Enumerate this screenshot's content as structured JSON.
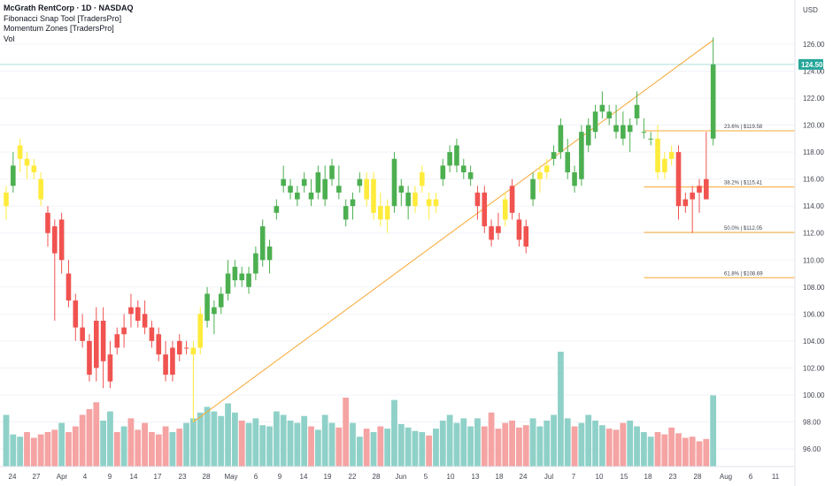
{
  "legend": {
    "title": "McGrath RentCorp · 1D · NASDAQ",
    "line2": "Fibonacci Snap Tool [TradersPro]",
    "line3": "Momentum Zones [TradersPro]",
    "line4": "Vol"
  },
  "currency": "USD",
  "last_price_tag": "124.50",
  "colors": {
    "up": "#4caf50",
    "down": "#f05350",
    "neutral": "#ffeb3b",
    "vol_up": "#8fd1c8",
    "vol_down": "#f5a3a3",
    "fib": "#f7a733",
    "trend": "#f7a733",
    "last_price": "#26a69a"
  },
  "chart_data": {
    "type": "candlestick",
    "x_tick_labels": [
      "24",
      "27",
      "Apr",
      "4",
      "9",
      "14",
      "17",
      "23",
      "28",
      "May",
      "6",
      "9",
      "14",
      "19",
      "22",
      "28",
      "Jun",
      "5",
      "10",
      "13",
      "18",
      "24",
      "Jul",
      "7",
      "10",
      "15",
      "18",
      "23",
      "28",
      "Aug",
      "6",
      "11"
    ],
    "y_ticks": [
      "96.00",
      "98.00",
      "100.00",
      "102.00",
      "104.00",
      "106.00",
      "108.00",
      "110.00",
      "112.00",
      "114.00",
      "116.00",
      "118.00",
      "120.00",
      "122.00",
      "124.00",
      "126.00"
    ],
    "ylim": [
      95,
      127
    ],
    "candles": [
      {
        "o": 114.0,
        "h": 115.5,
        "l": 113.0,
        "c": 115.0,
        "color": "neutral",
        "vol": 0.45
      },
      {
        "o": 115.5,
        "h": 118.0,
        "l": 115.0,
        "c": 117.0,
        "color": "up",
        "vol": 0.28
      },
      {
        "o": 117.5,
        "h": 119.0,
        "l": 116.5,
        "c": 118.5,
        "color": "neutral",
        "vol": 0.26
      },
      {
        "o": 117.5,
        "h": 118.0,
        "l": 116.0,
        "c": 117.0,
        "color": "neutral",
        "vol": 0.3
      },
      {
        "o": 117.0,
        "h": 117.5,
        "l": 116.0,
        "c": 116.5,
        "color": "neutral",
        "vol": 0.25
      },
      {
        "o": 116.0,
        "h": 116.5,
        "l": 114.0,
        "c": 114.5,
        "color": "neutral",
        "vol": 0.28
      },
      {
        "o": 113.5,
        "h": 114.0,
        "l": 111.0,
        "c": 112.0,
        "color": "down",
        "vol": 0.3
      },
      {
        "o": 112.5,
        "h": 113.0,
        "l": 105.5,
        "c": 110.5,
        "color": "down",
        "vol": 0.32
      },
      {
        "o": 110.0,
        "h": 113.5,
        "l": 109.0,
        "c": 113.0,
        "color": "down",
        "vol": 0.38
      },
      {
        "o": 109.0,
        "h": 110.0,
        "l": 106.5,
        "c": 107.0,
        "color": "down",
        "vol": 0.3
      },
      {
        "o": 107.0,
        "h": 107.5,
        "l": 104.0,
        "c": 105.0,
        "color": "down",
        "vol": 0.35
      },
      {
        "o": 105.0,
        "h": 106.0,
        "l": 103.5,
        "c": 104.0,
        "color": "down",
        "vol": 0.45
      },
      {
        "o": 104.0,
        "h": 104.5,
        "l": 101.0,
        "c": 101.5,
        "color": "down",
        "vol": 0.5
      },
      {
        "o": 105.5,
        "h": 106.5,
        "l": 101.0,
        "c": 102.0,
        "color": "down",
        "vol": 0.56
      },
      {
        "o": 102.5,
        "h": 106.5,
        "l": 100.5,
        "c": 105.5,
        "color": "down",
        "vol": 0.4
      },
      {
        "o": 101.0,
        "h": 104.0,
        "l": 100.5,
        "c": 103.0,
        "color": "down",
        "vol": 0.48
      },
      {
        "o": 104.5,
        "h": 105.0,
        "l": 103.0,
        "c": 103.5,
        "color": "down",
        "vol": 0.3
      },
      {
        "o": 104.5,
        "h": 106.0,
        "l": 103.5,
        "c": 105.0,
        "color": "down",
        "vol": 0.35
      },
      {
        "o": 106.5,
        "h": 107.5,
        "l": 105.0,
        "c": 106.0,
        "color": "down",
        "vol": 0.42
      },
      {
        "o": 106.5,
        "h": 107.0,
        "l": 105.0,
        "c": 105.5,
        "color": "down",
        "vol": 0.32
      },
      {
        "o": 106.0,
        "h": 107.0,
        "l": 104.5,
        "c": 105.0,
        "color": "down",
        "vol": 0.38
      },
      {
        "o": 105.0,
        "h": 105.5,
        "l": 103.5,
        "c": 104.0,
        "color": "down",
        "vol": 0.3
      },
      {
        "o": 104.5,
        "h": 105.0,
        "l": 102.5,
        "c": 103.0,
        "color": "down",
        "vol": 0.28
      },
      {
        "o": 103.0,
        "h": 104.0,
        "l": 101.0,
        "c": 101.5,
        "color": "down",
        "vol": 0.35
      },
      {
        "o": 101.5,
        "h": 104.0,
        "l": 101.0,
        "c": 103.5,
        "color": "down",
        "vol": 0.3
      },
      {
        "o": 104.0,
        "h": 104.5,
        "l": 102.5,
        "c": 103.0,
        "color": "down",
        "vol": 0.33
      },
      {
        "o": 103.5,
        "h": 104.0,
        "l": 103.0,
        "c": 103.5,
        "color": "down",
        "vol": 0.38
      },
      {
        "o": 103.0,
        "h": 104.0,
        "l": 98.0,
        "c": 103.5,
        "color": "neutral",
        "vol": 0.42
      },
      {
        "o": 103.5,
        "h": 106.5,
        "l": 103.0,
        "c": 106.0,
        "color": "neutral",
        "vol": 0.47
      },
      {
        "o": 105.5,
        "h": 108.0,
        "l": 105.0,
        "c": 107.5,
        "color": "up",
        "vol": 0.52
      },
      {
        "o": 106.0,
        "h": 107.0,
        "l": 104.5,
        "c": 106.5,
        "color": "up",
        "vol": 0.48
      },
      {
        "o": 106.5,
        "h": 108.0,
        "l": 106.0,
        "c": 107.5,
        "color": "up",
        "vol": 0.44
      },
      {
        "o": 107.5,
        "h": 110.0,
        "l": 107.0,
        "c": 109.0,
        "color": "up",
        "vol": 0.55
      },
      {
        "o": 108.5,
        "h": 110.0,
        "l": 108.0,
        "c": 109.5,
        "color": "up",
        "vol": 0.47
      },
      {
        "o": 109.0,
        "h": 109.5,
        "l": 108.0,
        "c": 108.5,
        "color": "up",
        "vol": 0.4
      },
      {
        "o": 108.0,
        "h": 109.5,
        "l": 107.5,
        "c": 109.0,
        "color": "up",
        "vol": 0.38
      },
      {
        "o": 109.0,
        "h": 111.0,
        "l": 108.5,
        "c": 110.5,
        "color": "up",
        "vol": 0.42
      },
      {
        "o": 110.0,
        "h": 113.0,
        "l": 109.5,
        "c": 112.5,
        "color": "up",
        "vol": 0.36
      },
      {
        "o": 110.0,
        "h": 111.5,
        "l": 109.0,
        "c": 111.0,
        "color": "up",
        "vol": 0.35
      },
      {
        "o": 113.5,
        "h": 114.5,
        "l": 113.0,
        "c": 114.0,
        "color": "up",
        "vol": 0.48
      },
      {
        "o": 115.5,
        "h": 117.0,
        "l": 115.0,
        "c": 116.0,
        "color": "up",
        "vol": 0.45
      },
      {
        "o": 115.0,
        "h": 116.0,
        "l": 114.5,
        "c": 115.5,
        "color": "up",
        "vol": 0.4
      },
      {
        "o": 114.5,
        "h": 115.5,
        "l": 114.0,
        "c": 115.0,
        "color": "up",
        "vol": 0.38
      },
      {
        "o": 115.5,
        "h": 116.5,
        "l": 115.0,
        "c": 116.0,
        "color": "up",
        "vol": 0.44
      },
      {
        "o": 115.0,
        "h": 116.0,
        "l": 114.0,
        "c": 114.5,
        "color": "up",
        "vol": 0.35
      },
      {
        "o": 115.0,
        "h": 117.0,
        "l": 114.5,
        "c": 116.5,
        "color": "up",
        "vol": 0.32
      },
      {
        "o": 114.5,
        "h": 117.0,
        "l": 114.0,
        "c": 116.0,
        "color": "up",
        "vol": 0.45
      },
      {
        "o": 116.0,
        "h": 117.5,
        "l": 115.5,
        "c": 117.0,
        "color": "up",
        "vol": 0.38
      },
      {
        "o": 115.5,
        "h": 117.0,
        "l": 114.5,
        "c": 115.0,
        "color": "up",
        "vol": 0.34
      },
      {
        "o": 114.0,
        "h": 114.5,
        "l": 112.5,
        "c": 113.0,
        "color": "up",
        "vol": 0.6
      },
      {
        "o": 114.0,
        "h": 115.0,
        "l": 113.0,
        "c": 114.5,
        "color": "up",
        "vol": 0.38
      },
      {
        "o": 115.5,
        "h": 116.5,
        "l": 115.0,
        "c": 116.0,
        "color": "up",
        "vol": 0.26
      },
      {
        "o": 116.0,
        "h": 116.5,
        "l": 114.0,
        "c": 114.5,
        "color": "neutral",
        "vol": 0.33
      },
      {
        "o": 113.5,
        "h": 116.5,
        "l": 113.0,
        "c": 116.0,
        "color": "neutral",
        "vol": 0.3
      },
      {
        "o": 114.0,
        "h": 115.0,
        "l": 112.5,
        "c": 113.0,
        "color": "neutral",
        "vol": 0.35
      },
      {
        "o": 113.0,
        "h": 114.5,
        "l": 112.0,
        "c": 114.0,
        "color": "neutral",
        "vol": 0.33
      },
      {
        "o": 114.0,
        "h": 118.0,
        "l": 113.5,
        "c": 117.5,
        "color": "up",
        "vol": 0.58
      },
      {
        "o": 115.0,
        "h": 116.0,
        "l": 114.0,
        "c": 115.5,
        "color": "up",
        "vol": 0.37
      },
      {
        "o": 114.0,
        "h": 115.5,
        "l": 113.0,
        "c": 115.0,
        "color": "up",
        "vol": 0.34
      },
      {
        "o": 114.0,
        "h": 115.5,
        "l": 113.5,
        "c": 115.0,
        "color": "neutral",
        "vol": 0.31
      },
      {
        "o": 115.5,
        "h": 117.0,
        "l": 115.0,
        "c": 116.5,
        "color": "neutral",
        "vol": 0.3
      },
      {
        "o": 114.5,
        "h": 115.0,
        "l": 113.0,
        "c": 114.0,
        "color": "neutral",
        "vol": 0.27
      },
      {
        "o": 114.0,
        "h": 115.0,
        "l": 113.5,
        "c": 114.5,
        "color": "neutral",
        "vol": 0.33
      },
      {
        "o": 116.0,
        "h": 117.5,
        "l": 115.5,
        "c": 117.0,
        "color": "up",
        "vol": 0.4
      },
      {
        "o": 117.0,
        "h": 118.5,
        "l": 116.5,
        "c": 118.0,
        "color": "up",
        "vol": 0.45
      },
      {
        "o": 117.0,
        "h": 119.0,
        "l": 116.5,
        "c": 118.5,
        "color": "up",
        "vol": 0.38
      },
      {
        "o": 116.5,
        "h": 117.5,
        "l": 116.0,
        "c": 117.0,
        "color": "up",
        "vol": 0.42
      },
      {
        "o": 116.0,
        "h": 117.0,
        "l": 115.5,
        "c": 116.5,
        "color": "up",
        "vol": 0.35
      },
      {
        "o": 114.0,
        "h": 115.5,
        "l": 113.0,
        "c": 115.0,
        "color": "down",
        "vol": 0.42
      },
      {
        "o": 115.0,
        "h": 115.5,
        "l": 112.0,
        "c": 112.5,
        "color": "down",
        "vol": 0.35
      },
      {
        "o": 112.5,
        "h": 113.0,
        "l": 111.0,
        "c": 111.5,
        "color": "down",
        "vol": 0.47
      },
      {
        "o": 112.5,
        "h": 113.5,
        "l": 111.5,
        "c": 112.0,
        "color": "down",
        "vol": 0.33
      },
      {
        "o": 114.5,
        "h": 115.0,
        "l": 112.5,
        "c": 113.0,
        "color": "neutral",
        "vol": 0.38
      },
      {
        "o": 115.5,
        "h": 116.0,
        "l": 113.0,
        "c": 113.5,
        "color": "down",
        "vol": 0.4
      },
      {
        "o": 113.0,
        "h": 113.5,
        "l": 111.0,
        "c": 111.5,
        "color": "down",
        "vol": 0.34
      },
      {
        "o": 112.5,
        "h": 113.0,
        "l": 110.5,
        "c": 111.0,
        "color": "down",
        "vol": 0.36
      },
      {
        "o": 114.5,
        "h": 116.5,
        "l": 114.0,
        "c": 116.0,
        "color": "up",
        "vol": 0.42
      },
      {
        "o": 116.0,
        "h": 117.0,
        "l": 115.0,
        "c": 116.5,
        "color": "neutral",
        "vol": 0.35
      },
      {
        "o": 116.5,
        "h": 117.5,
        "l": 116.0,
        "c": 117.0,
        "color": "neutral",
        "vol": 0.4
      },
      {
        "o": 117.5,
        "h": 118.5,
        "l": 117.0,
        "c": 118.0,
        "color": "up",
        "vol": 0.45
      },
      {
        "o": 118.0,
        "h": 120.5,
        "l": 117.5,
        "c": 120.0,
        "color": "up",
        "vol": 1.0
      },
      {
        "o": 116.5,
        "h": 119.0,
        "l": 116.0,
        "c": 118.0,
        "color": "up",
        "vol": 0.42
      },
      {
        "o": 116.5,
        "h": 117.0,
        "l": 115.0,
        "c": 115.5,
        "color": "up",
        "vol": 0.35
      },
      {
        "o": 116.0,
        "h": 120.0,
        "l": 115.5,
        "c": 119.5,
        "color": "up",
        "vol": 0.38
      },
      {
        "o": 118.5,
        "h": 120.5,
        "l": 118.0,
        "c": 120.0,
        "color": "up",
        "vol": 0.45
      },
      {
        "o": 119.5,
        "h": 121.5,
        "l": 119.0,
        "c": 121.0,
        "color": "up",
        "vol": 0.4
      },
      {
        "o": 121.0,
        "h": 122.5,
        "l": 120.5,
        "c": 121.5,
        "color": "up",
        "vol": 0.36
      },
      {
        "o": 121.0,
        "h": 121.5,
        "l": 120.0,
        "c": 120.5,
        "color": "up",
        "vol": 0.33
      },
      {
        "o": 120.0,
        "h": 121.5,
        "l": 119.0,
        "c": 119.5,
        "color": "up",
        "vol": 0.32
      },
      {
        "o": 120.0,
        "h": 121.0,
        "l": 118.5,
        "c": 119.0,
        "color": "up",
        "vol": 0.38
      },
      {
        "o": 119.5,
        "h": 120.5,
        "l": 118.0,
        "c": 120.0,
        "color": "up",
        "vol": 0.4
      },
      {
        "o": 120.5,
        "h": 122.5,
        "l": 120.0,
        "c": 121.5,
        "color": "up",
        "vol": 0.35
      },
      {
        "o": 119.5,
        "h": 120.5,
        "l": 119.0,
        "c": 119.5,
        "color": "up",
        "vol": 0.3
      },
      {
        "o": 119.0,
        "h": 119.5,
        "l": 118.5,
        "c": 119.0,
        "color": "up",
        "vol": 0.26
      },
      {
        "o": 119.0,
        "h": 120.0,
        "l": 116.0,
        "c": 116.5,
        "color": "neutral",
        "vol": 0.3
      },
      {
        "o": 117.5,
        "h": 118.0,
        "l": 116.0,
        "c": 116.5,
        "color": "neutral",
        "vol": 0.28
      },
      {
        "o": 118.0,
        "h": 118.5,
        "l": 117.0,
        "c": 117.5,
        "color": "neutral",
        "vol": 0.34
      },
      {
        "o": 118.0,
        "h": 118.5,
        "l": 113.0,
        "c": 114.0,
        "color": "down",
        "vol": 0.29
      },
      {
        "o": 114.5,
        "h": 115.0,
        "l": 113.5,
        "c": 114.0,
        "color": "down",
        "vol": 0.25
      },
      {
        "o": 115.0,
        "h": 115.5,
        "l": 112.0,
        "c": 114.5,
        "color": "down",
        "vol": 0.26
      },
      {
        "o": 115.5,
        "h": 116.0,
        "l": 113.5,
        "c": 115.0,
        "color": "down",
        "vol": 0.22
      },
      {
        "o": 116.0,
        "h": 119.5,
        "l": 114.5,
        "c": 114.5,
        "color": "down",
        "vol": 0.24
      },
      {
        "o": 119.0,
        "h": 126.5,
        "l": 118.5,
        "c": 124.5,
        "color": "up",
        "vol": 0.62
      }
    ],
    "fib_levels": [
      {
        "price": 119.58,
        "label": "23.6% | $119.58"
      },
      {
        "price": 115.41,
        "label": "38.2% | $115.41"
      },
      {
        "price": 112.05,
        "label": "50.0% | $112.05"
      },
      {
        "price": 108.69,
        "label": "61.8% | $108.69"
      }
    ],
    "trend_line": {
      "from_price": 98.0,
      "to_price": 126.3
    },
    "last_price": 124.5
  }
}
